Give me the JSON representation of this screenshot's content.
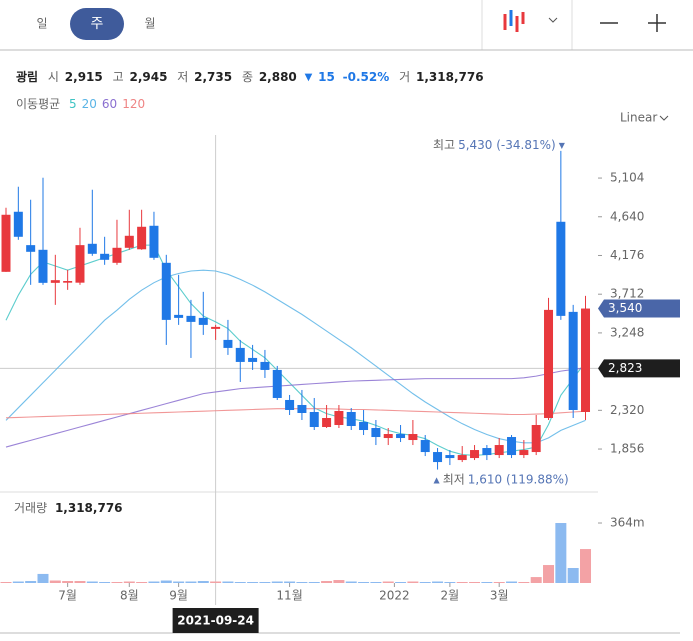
{
  "tabs": [
    "일",
    "주",
    "월"
  ],
  "header": {
    "name": "광림",
    "fields": [
      {
        "label": "시",
        "value": "2,915"
      },
      {
        "label": "고",
        "value": "2,945"
      },
      {
        "label": "저",
        "value": "2,735"
      },
      {
        "label": "종",
        "value": "2,880"
      }
    ],
    "change_arrow": "▼",
    "change": "15",
    "change_pct": "-0.52%",
    "volume_label": "거",
    "volume": "1,318,776"
  },
  "chart_data": {
    "type": "candlestick",
    "scale": "Linear",
    "ma_label": "이동평균",
    "up_color": "#e8383d",
    "down_color": "#1f78e6",
    "open": [
      3980,
      4700,
      4300,
      4244,
      3848,
      3850,
      3850,
      4316,
      4196,
      4088,
      4268,
      4250,
      4532,
      4088,
      3464,
      3452,
      3428,
      3296,
      3164,
      3068,
      2948,
      2900,
      2804,
      2444,
      2384,
      2300,
      2120,
      2144,
      2300,
      2180,
      2108,
      1988,
      2036,
      1964,
      1964,
      1820,
      1784,
      1724,
      1748,
      1868,
      1784,
      2000,
      1784,
      1820,
      2228,
      4580,
      3500,
      2300
    ],
    "high": [
      4748,
      5000,
      4844,
      5108,
      4184,
      4004,
      4508,
      4964,
      4400,
      4604,
      4724,
      4724,
      4700,
      4184,
      3944,
      3644,
      3740,
      3344,
      3404,
      3164,
      3104,
      3044,
      2852,
      2504,
      2564,
      2468,
      2384,
      2384,
      2348,
      2324,
      2204,
      2108,
      2144,
      2204,
      2024,
      1868,
      1844,
      1892,
      1904,
      1904,
      1988,
      2024,
      1964,
      2264,
      3668,
      5430,
      3584,
      3692
    ],
    "low": [
      3980,
      4364,
      3824,
      3824,
      3584,
      3764,
      3824,
      4172,
      4064,
      4064,
      4244,
      4244,
      4124,
      3104,
      3344,
      2948,
      3224,
      3164,
      2984,
      2660,
      2804,
      2708,
      2444,
      2264,
      2204,
      2084,
      2108,
      2108,
      2084,
      2024,
      1904,
      1904,
      1940,
      1904,
      1772,
      1610,
      1664,
      1700,
      1724,
      1724,
      1748,
      1748,
      1748,
      1784,
      2204,
      3404,
      2228,
      2204
    ],
    "close": [
      4664,
      4400,
      4220,
      3848,
      3880,
      3870,
      4300,
      4196,
      4124,
      4268,
      4412,
      4520,
      4148,
      3404,
      3428,
      3380,
      3344,
      3320,
      3068,
      2900,
      2900,
      2804,
      2468,
      2324,
      2288,
      2120,
      2228,
      2312,
      2132,
      2084,
      2000,
      2036,
      1988,
      2036,
      1820,
      1700,
      1748,
      1784,
      1844,
      1784,
      1904,
      1784,
      1844,
      2144,
      3524,
      3452,
      2324,
      3540
    ],
    "series": [
      {
        "name": "5",
        "color": "#3fc4c4",
        "values": [
          3400,
          3700,
          3950,
          4100,
          4050,
          4000,
          4050,
          4100,
          4150,
          4200,
          4250,
          4300,
          4300,
          4000,
          3800,
          3600,
          3450,
          3380,
          3300,
          3150,
          3050,
          2950,
          2800,
          2650,
          2500,
          2350,
          2280,
          2240,
          2220,
          2190,
          2140,
          2080,
          2040,
          2020,
          1980,
          1900,
          1830,
          1790,
          1780,
          1790,
          1810,
          1830,
          1850,
          1880,
          2150,
          2500,
          2700,
          2900
        ]
      },
      {
        "name": "20",
        "color": "#5ab4e6",
        "values": [
          2200,
          2350,
          2500,
          2650,
          2800,
          2950,
          3100,
          3250,
          3400,
          3520,
          3650,
          3760,
          3850,
          3920,
          3960,
          3990,
          4000,
          3990,
          3950,
          3890,
          3820,
          3740,
          3650,
          3560,
          3470,
          3370,
          3270,
          3170,
          3070,
          2960,
          2850,
          2740,
          2630,
          2520,
          2420,
          2330,
          2240,
          2160,
          2090,
          2030,
          1980,
          1950,
          1930,
          1930,
          1990,
          2080,
          2140,
          2200
        ]
      },
      {
        "name": "60",
        "color": "#8a6fd0",
        "values": [
          1880,
          1920,
          1960,
          2000,
          2040,
          2080,
          2120,
          2160,
          2200,
          2240,
          2280,
          2320,
          2360,
          2400,
          2440,
          2480,
          2520,
          2540,
          2560,
          2580,
          2590,
          2600,
          2610,
          2620,
          2630,
          2640,
          2650,
          2660,
          2670,
          2675,
          2680,
          2685,
          2690,
          2695,
          2700,
          2700,
          2700,
          2700,
          2700,
          2700,
          2700,
          2700,
          2710,
          2730,
          2760,
          2790,
          2810,
          2830
        ]
      },
      {
        "name": "120",
        "color": "#ef8585",
        "values": [
          2230,
          2235,
          2240,
          2245,
          2250,
          2255,
          2260,
          2265,
          2270,
          2275,
          2280,
          2285,
          2290,
          2295,
          2300,
          2305,
          2310,
          2315,
          2320,
          2325,
          2330,
          2335,
          2340,
          2340,
          2340,
          2340,
          2340,
          2335,
          2330,
          2330,
          2325,
          2320,
          2315,
          2310,
          2305,
          2300,
          2295,
          2290,
          2285,
          2280,
          2275,
          2270,
          2270,
          2275,
          2280,
          2290,
          2300,
          2310
        ]
      }
    ],
    "ylim": [
      1365,
      5680
    ],
    "yticks": [
      {
        "value": 1856,
        "label": "1,856"
      },
      {
        "value": 2320,
        "label": "2,320"
      },
      {
        "value": 3248,
        "label": "3,248"
      },
      {
        "value": 3712,
        "label": "3,712"
      },
      {
        "value": 4176,
        "label": "4,176"
      },
      {
        "value": 4640,
        "label": "4,640"
      },
      {
        "value": 5104,
        "label": "5,104"
      }
    ],
    "xticks": [
      {
        "value": 5,
        "label": "7월"
      },
      {
        "value": 10,
        "label": "8월"
      },
      {
        "value": 14,
        "label": "9월"
      },
      {
        "value": 23,
        "label": "11월"
      },
      {
        "value": 31.5,
        "label": "2022"
      },
      {
        "value": 36,
        "label": "2월"
      },
      {
        "value": 40,
        "label": "3월"
      }
    ],
    "max_annotation": {
      "label": "최고",
      "text": "5,430 (-34.81%)",
      "arrow": "▼"
    },
    "min_annotation": {
      "label": "최저",
      "text": "1,610 (119.88%)",
      "arrow": "▲"
    },
    "last_price": {
      "value": 3540,
      "label": "3,540"
    },
    "crosshair": {
      "index": 17,
      "date": "2021-09-24",
      "value": 2823,
      "label": "2,823"
    },
    "volume": {
      "label": "거래량",
      "total": "1,318,776",
      "values": [
        6,
        9,
        12,
        55,
        15,
        12,
        12,
        9,
        6,
        6,
        9,
        6,
        9,
        15,
        9,
        9,
        12,
        9,
        9,
        6,
        6,
        6,
        9,
        9,
        6,
        6,
        12,
        18,
        9,
        6,
        6,
        9,
        6,
        9,
        6,
        9,
        6,
        6,
        6,
        6,
        6,
        9,
        6,
        36,
        109,
        364,
        91,
        206
      ],
      "ylim": [
        0,
        534
      ],
      "yticks": [
        {
          "value": 364,
          "label": "364m"
        }
      ]
    }
  }
}
